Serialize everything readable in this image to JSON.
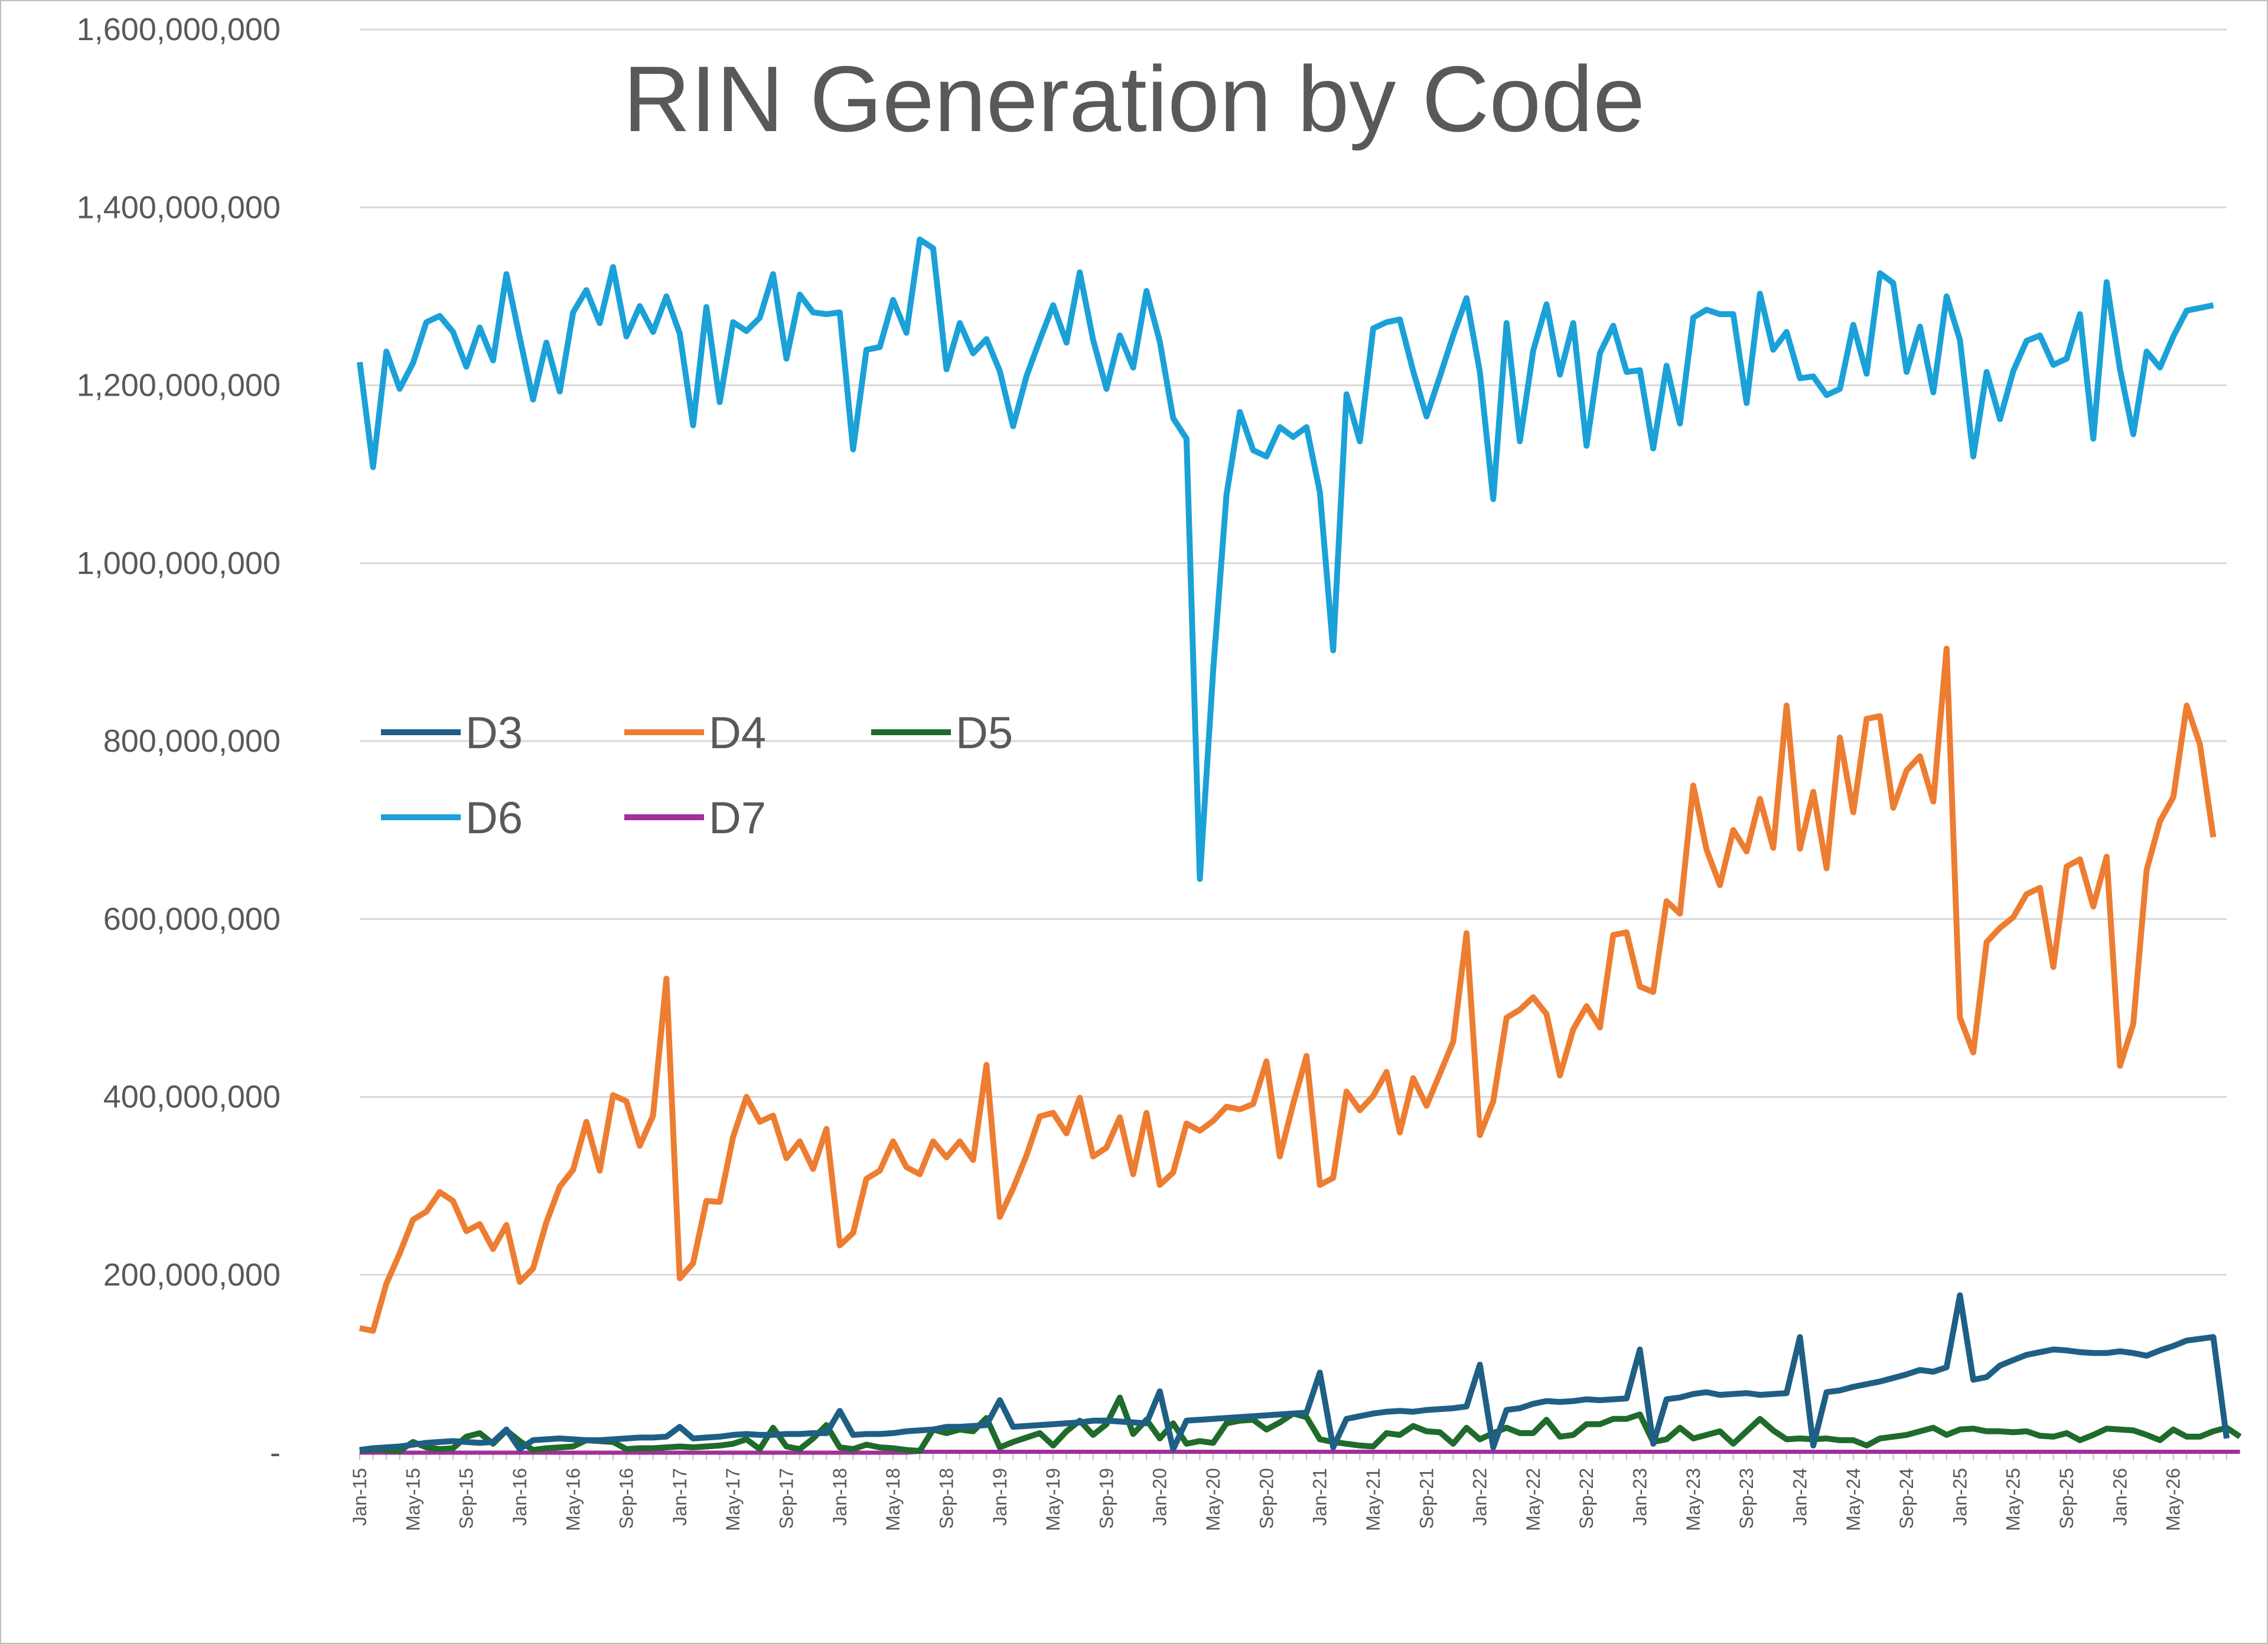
{
  "chart_data": {
    "type": "line",
    "title": "RIN Generation by Code",
    "xlabel": "",
    "ylabel": "",
    "ylim": [
      0,
      1600000000
    ],
    "y_tick_labels": [
      "-",
      "200,000,000",
      "400,000,000",
      "600,000,000",
      "800,000,000",
      "1,000,000,000",
      "1,200,000,000",
      "1,400,000,000",
      "1,600,000,000"
    ],
    "x_tick_labels": [
      "Jan-15",
      "May-15",
      "Sep-15",
      "Jan-16",
      "May-16",
      "Sep-16",
      "Jan-17",
      "May-17",
      "Sep-17",
      "Jan-18",
      "May-18",
      "Sep-18",
      "Jan-19",
      "May-19",
      "Sep-19",
      "Jan-20",
      "May-20",
      "Sep-20",
      "Jan-21",
      "May-21",
      "Sep-21",
      "Jan-22",
      "May-22",
      "Sep-22",
      "Jan-23",
      "May-23",
      "Sep-23",
      "Jan-24",
      "May-24",
      "Sep-24",
      "Jan-25",
      "May-25",
      "Sep-25",
      "Jan-26",
      "May-26"
    ],
    "grid": "horizontal",
    "legend_position": "center-left",
    "x_start": "Jan-15",
    "x_end": "Aug-26",
    "series": [
      {
        "name": "D3",
        "color": "#1f5f85",
        "values": [
          3000000,
          5000000,
          6000000,
          7000000,
          9000000,
          11000000,
          12000000,
          13000000,
          12000000,
          11000000,
          12000000,
          26000000,
          4000000,
          14000000,
          15000000,
          16000000,
          15000000,
          14000000,
          14000000,
          15000000,
          16000000,
          17000000,
          17000000,
          18000000,
          29000000,
          16000000,
          17000000,
          18000000,
          20000000,
          21000000,
          20000000,
          20000000,
          21000000,
          21000000,
          22000000,
          22000000,
          47000000,
          20000000,
          21000000,
          21000000,
          22000000,
          24000000,
          25000000,
          26000000,
          29000000,
          29000000,
          30000000,
          31000000,
          59000000,
          29000000,
          30000000,
          31000000,
          32000000,
          33000000,
          34000000,
          36000000,
          36000000,
          35000000,
          34000000,
          33000000,
          69000000,
          4000000,
          36000000,
          37000000,
          38000000,
          39000000,
          40000000,
          41000000,
          42000000,
          43000000,
          44000000,
          45000000,
          90000000,
          6000000,
          38000000,
          41000000,
          44000000,
          46000000,
          47000000,
          46000000,
          48000000,
          49000000,
          50000000,
          52000000,
          99000000,
          6000000,
          48000000,
          50000000,
          55000000,
          58000000,
          57000000,
          58000000,
          60000000,
          59000000,
          60000000,
          61000000,
          116000000,
          10000000,
          60000000,
          62000000,
          66000000,
          68000000,
          65000000,
          66000000,
          67000000,
          65000000,
          66000000,
          67000000,
          130000000,
          8000000,
          68000000,
          70000000,
          74000000,
          77000000,
          80000000,
          84000000,
          88000000,
          93000000,
          91000000,
          96000000,
          177000000,
          82000000,
          85000000,
          98000000,
          104000000,
          110000000,
          113000000,
          116000000,
          115000000,
          113000000,
          112000000,
          112000000,
          114000000,
          112000000,
          109000000,
          115000000,
          120000000,
          126000000,
          128000000,
          130000000,
          16000000
        ]
      },
      {
        "name": "D4",
        "color": "#ed7d31",
        "values": [
          140000000,
          137000000,
          190000000,
          224000000,
          262000000,
          271000000,
          293000000,
          283000000,
          249000000,
          257000000,
          229000000,
          256000000,
          192000000,
          207000000,
          259000000,
          299000000,
          318000000,
          372000000,
          317000000,
          402000000,
          395000000,
          345000000,
          379000000,
          533000000,
          196000000,
          213000000,
          283000000,
          282000000,
          355000000,
          400000000,
          372000000,
          379000000,
          331000000,
          350000000,
          319000000,
          364000000,
          233000000,
          247000000,
          308000000,
          317000000,
          350000000,
          321000000,
          313000000,
          350000000,
          332000000,
          350000000,
          329000000,
          436000000,
          265000000,
          297000000,
          334000000,
          378000000,
          382000000,
          359000000,
          399000000,
          333000000,
          343000000,
          377000000,
          313000000,
          382000000,
          301000000,
          315000000,
          370000000,
          362000000,
          373000000,
          389000000,
          386000000,
          392000000,
          440000000,
          333000000,
          392000000,
          446000000,
          301000000,
          309000000,
          406000000,
          385000000,
          401000000,
          428000000,
          360000000,
          421000000,
          390000000,
          426000000,
          462000000,
          584000000,
          357000000,
          395000000,
          489000000,
          498000000,
          512000000,
          493000000,
          424000000,
          476000000,
          502000000,
          478000000,
          582000000,
          585000000,
          524000000,
          518000000,
          620000000,
          606000000,
          750000000,
          678000000,
          638000000,
          700000000,
          676000000,
          735000000,
          680000000,
          840000000,
          679000000,
          743000000,
          657000000,
          804000000,
          720000000,
          825000000,
          828000000,
          725000000,
          767000000,
          783000000,
          732000000,
          904000000,
          489000000,
          450000000,
          574000000,
          590000000,
          602000000,
          628000000,
          635000000,
          546000000,
          659000000,
          667000000,
          614000000,
          670000000,
          435000000,
          482000000,
          655000000,
          710000000,
          737000000,
          840000000,
          796000000,
          692000000
        ]
      },
      {
        "name": "D5",
        "color": "#1f6b2b",
        "values": [
          2000000,
          4000000,
          3000000,
          2000000,
          12000000,
          6000000,
          4000000,
          5000000,
          18000000,
          22000000,
          10000000,
          25000000,
          13000000,
          3000000,
          5000000,
          6000000,
          7000000,
          14000000,
          13000000,
          12000000,
          4000000,
          5000000,
          5000000,
          6000000,
          7000000,
          6000000,
          7000000,
          8000000,
          10000000,
          15000000,
          4000000,
          28000000,
          7000000,
          4000000,
          16000000,
          31000000,
          6000000,
          4000000,
          9000000,
          6000000,
          5000000,
          3000000,
          2000000,
          26000000,
          22000000,
          26000000,
          24000000,
          39000000,
          6000000,
          12000000,
          17000000,
          22000000,
          8000000,
          24000000,
          36000000,
          20000000,
          32000000,
          62000000,
          21000000,
          37000000,
          16000000,
          33000000,
          10000000,
          13000000,
          11000000,
          33000000,
          36000000,
          37000000,
          26000000,
          34000000,
          44000000,
          40000000,
          15000000,
          12000000,
          10000000,
          8000000,
          7000000,
          22000000,
          20000000,
          30000000,
          24000000,
          23000000,
          10000000,
          28000000,
          15000000,
          22000000,
          28000000,
          22000000,
          22000000,
          37000000,
          18000000,
          20000000,
          32000000,
          32000000,
          38000000,
          38000000,
          43000000,
          12000000,
          15000000,
          28000000,
          16000000,
          20000000,
          24000000,
          10000000,
          24000000,
          38000000,
          25000000,
          15000000,
          16000000,
          15000000,
          16000000,
          14000000,
          14000000,
          8000000,
          16000000,
          18000000,
          20000000,
          24000000,
          28000000,
          20000000,
          26000000,
          27000000,
          24000000,
          24000000,
          23000000,
          24000000,
          19000000,
          18000000,
          22000000,
          14000000,
          20000000,
          27000000,
          26000000,
          25000000,
          20000000,
          14000000,
          26000000,
          18000000,
          18000000,
          24000000,
          28000000,
          18000000
        ]
      },
      {
        "name": "D6",
        "color": "#1ba1d8",
        "values": [
          1226000000,
          1108000000,
          1238000000,
          1196000000,
          1225000000,
          1271000000,
          1278000000,
          1260000000,
          1221000000,
          1265000000,
          1228000000,
          1325000000,
          1254000000,
          1184000000,
          1248000000,
          1193000000,
          1282000000,
          1307000000,
          1270000000,
          1333000000,
          1255000000,
          1289000000,
          1260000000,
          1300000000,
          1258000000,
          1155000000,
          1288000000,
          1181000000,
          1271000000,
          1261000000,
          1276000000,
          1325000000,
          1230000000,
          1302000000,
          1282000000,
          1280000000,
          1282000000,
          1128000000,
          1240000000,
          1243000000,
          1296000000,
          1259000000,
          1364000000,
          1354000000,
          1218000000,
          1270000000,
          1236000000,
          1252000000,
          1216000000,
          1154000000,
          1210000000,
          1251000000,
          1290000000,
          1248000000,
          1327000000,
          1251000000,
          1196000000,
          1256000000,
          1220000000,
          1306000000,
          1249000000,
          1163000000,
          1140000000,
          645000000,
          879000000,
          1077000000,
          1170000000,
          1127000000,
          1120000000,
          1153000000,
          1142000000,
          1153000000,
          1080000000,
          902000000,
          1190000000,
          1137000000,
          1264000000,
          1271000000,
          1274000000,
          1216000000,
          1165000000,
          1210000000,
          1256000000,
          1298000000,
          1215000000,
          1072000000,
          1270000000,
          1137000000,
          1239000000,
          1291000000,
          1212000000,
          1270000000,
          1132000000,
          1236000000,
          1267000000,
          1215000000,
          1217000000,
          1129000000,
          1222000000,
          1157000000,
          1276000000,
          1285000000,
          1280000000,
          1280000000,
          1180000000,
          1303000000,
          1240000000,
          1260000000,
          1208000000,
          1210000000,
          1189000000,
          1196000000,
          1268000000,
          1213000000,
          1326000000,
          1315000000,
          1215000000,
          1266000000,
          1192000000,
          1300000000,
          1251000000,
          1120000000,
          1215000000,
          1162000000,
          1216000000,
          1250000000,
          1256000000,
          1223000000,
          1230000000,
          1280000000,
          1140000000,
          1316000000,
          1218000000,
          1145000000,
          1238000000,
          1220000000,
          1255000000,
          1284000000,
          1287000000,
          1290000000
        ]
      },
      {
        "name": "D7",
        "color": "#a0309a",
        "values": [
          0,
          0,
          0,
          0,
          0,
          0,
          0,
          0,
          0,
          0,
          0,
          0,
          0,
          0,
          0,
          0,
          0,
          0,
          0,
          0,
          0,
          0,
          0,
          0,
          0,
          0,
          0,
          0,
          0,
          0,
          0,
          0,
          0,
          0,
          0,
          0,
          0,
          0,
          0,
          0,
          0,
          0,
          1000000,
          1000000,
          1000000,
          1000000,
          1000000,
          1000000,
          1000000,
          1000000,
          1000000,
          1000000,
          1000000,
          1000000,
          1000000,
          1000000,
          1000000,
          1000000,
          1000000,
          1000000,
          1000000,
          1000000,
          1000000,
          1000000,
          1000000,
          1000000,
          1000000,
          1000000,
          1000000,
          1000000,
          1000000,
          1000000,
          1000000,
          1000000,
          1000000,
          1000000,
          1000000,
          1000000,
          1000000,
          1000000,
          1000000,
          1000000,
          1000000,
          1000000,
          1000000,
          1000000,
          1000000,
          1000000,
          1000000,
          1000000,
          1000000,
          1000000,
          1000000,
          1000000,
          1000000,
          1000000,
          1000000,
          1000000,
          1000000,
          1000000,
          1000000,
          1000000,
          1000000,
          1000000,
          1000000,
          1000000,
          1000000,
          1000000,
          1000000,
          1000000,
          1000000,
          1000000,
          1000000,
          1000000,
          1000000,
          1000000,
          1000000,
          1000000,
          1000000,
          1000000,
          1000000,
          1000000,
          1000000,
          1000000,
          1000000,
          1000000,
          1000000,
          1000000,
          1000000,
          1000000,
          1000000,
          1000000,
          1000000,
          1000000,
          1000000,
          1000000,
          1000000,
          1000000,
          1000000,
          1000000,
          1000000,
          1000000
        ]
      }
    ]
  }
}
